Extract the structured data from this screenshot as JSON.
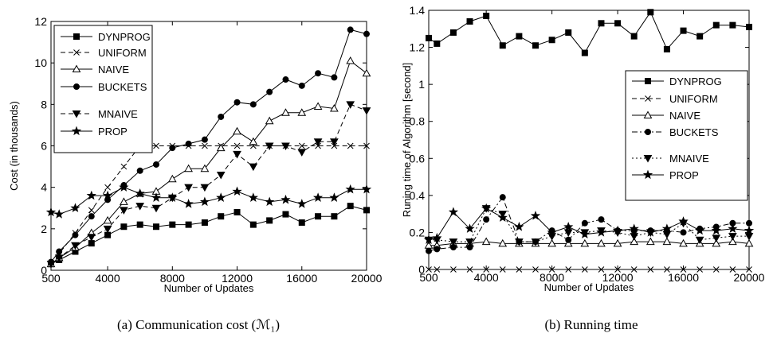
{
  "chart_data": [
    {
      "type": "line",
      "caption": "(a) Communication cost (ℳ₁)",
      "xlabel": "Number of Updates",
      "ylabel": "Cost (in thousands)",
      "xlim": [
        500,
        20000
      ],
      "ylim": [
        0,
        12
      ],
      "xticks": [
        "500",
        "4000",
        "8000",
        "12000",
        "16000",
        "20000"
      ],
      "yticks": [
        "0",
        "2",
        "4",
        "6",
        "8",
        "10",
        "12"
      ],
      "legend_position": "top-left",
      "x": [
        500,
        1000,
        2000,
        3000,
        4000,
        5000,
        6000,
        7000,
        8000,
        9000,
        10000,
        11000,
        12000,
        13000,
        14000,
        15000,
        16000,
        17000,
        18000,
        19000,
        20000
      ],
      "series": [
        {
          "name": "DYNPROG",
          "marker": "square",
          "dash": "solid",
          "values": [
            0.3,
            0.5,
            0.9,
            1.3,
            1.7,
            2.1,
            2.2,
            2.1,
            2.2,
            2.2,
            2.3,
            2.6,
            2.8,
            2.2,
            2.4,
            2.7,
            2.3,
            2.6,
            2.6,
            3.1,
            2.9
          ]
        },
        {
          "name": "UNIFORM",
          "marker": "x",
          "dash": "dashed",
          "values": [
            0.3,
            0.8,
            1.8,
            2.9,
            4.0,
            5.0,
            6.0,
            6.0,
            6.0,
            6.0,
            6.0,
            6.0,
            6.0,
            6.0,
            6.0,
            6.0,
            6.0,
            6.0,
            6.0,
            6.0,
            6.0
          ]
        },
        {
          "name": "NAIVE",
          "marker": "triangle-up",
          "dash": "solid",
          "values": [
            0.3,
            0.6,
            1.1,
            1.8,
            2.4,
            3.3,
            3.7,
            3.8,
            4.4,
            4.9,
            4.9,
            5.9,
            6.7,
            6.2,
            7.2,
            7.6,
            7.6,
            7.9,
            7.8,
            10.1,
            9.5
          ]
        },
        {
          "name": "BUCKETS",
          "marker": "circle",
          "dash": "solid",
          "values": [
            0.4,
            0.9,
            1.7,
            2.6,
            3.4,
            4.1,
            4.8,
            5.1,
            5.9,
            6.1,
            6.3,
            7.4,
            8.1,
            8.0,
            8.6,
            9.2,
            8.9,
            9.5,
            9.3,
            11.6,
            11.4
          ]
        },
        {
          "name": "MNAIVE",
          "marker": "triangle-down",
          "dash": "dashed",
          "values": [
            0.3,
            0.6,
            1.2,
            1.6,
            2.0,
            2.9,
            3.1,
            3.0,
            3.5,
            4.0,
            4.0,
            4.6,
            5.6,
            5.0,
            6.0,
            6.0,
            5.7,
            6.2,
            6.2,
            8.0,
            7.7
          ]
        },
        {
          "name": "PROP",
          "marker": "star",
          "dash": "solid",
          "values": [
            2.8,
            2.7,
            3.0,
            3.6,
            3.6,
            4.0,
            3.7,
            3.5,
            3.5,
            3.2,
            3.3,
            3.5,
            3.8,
            3.5,
            3.3,
            3.4,
            3.2,
            3.5,
            3.5,
            3.9,
            3.9
          ]
        }
      ]
    },
    {
      "type": "line",
      "caption": "(b) Running time",
      "xlabel": "Number of Updates",
      "ylabel": "Runing time of Algorithm [second]",
      "xlim": [
        500,
        20000
      ],
      "ylim": [
        0,
        1.4
      ],
      "xticks": [
        "500",
        "4000",
        "8000",
        "12000",
        "16000",
        "20000"
      ],
      "yticks": [
        "0",
        "0.2",
        "0.4",
        "0.6",
        "0.8",
        "1",
        "1.2",
        "1.4"
      ],
      "legend_position": "center-right",
      "x": [
        500,
        1000,
        2000,
        3000,
        4000,
        5000,
        6000,
        7000,
        8000,
        9000,
        10000,
        11000,
        12000,
        13000,
        14000,
        15000,
        16000,
        17000,
        18000,
        19000,
        20000
      ],
      "series": [
        {
          "name": "DYNPROG",
          "marker": "square",
          "dash": "solid",
          "values": [
            1.25,
            1.22,
            1.28,
            1.34,
            1.37,
            1.21,
            1.26,
            1.21,
            1.24,
            1.28,
            1.17,
            1.33,
            1.33,
            1.26,
            1.39,
            1.19,
            1.29,
            1.26,
            1.32,
            1.32,
            1.31
          ]
        },
        {
          "name": "UNIFORM",
          "marker": "x",
          "dash": "dashed",
          "values": [
            0.0,
            0.0,
            0.0,
            0.0,
            0.0,
            0.0,
            0.0,
            0.0,
            0.0,
            0.0,
            0.0,
            0.0,
            0.0,
            0.0,
            0.0,
            0.0,
            0.0,
            0.0,
            0.0,
            0.0,
            0.0
          ]
        },
        {
          "name": "NAIVE",
          "marker": "triangle-up",
          "dash": "solid",
          "values": [
            0.13,
            0.13,
            0.14,
            0.14,
            0.15,
            0.14,
            0.14,
            0.14,
            0.14,
            0.14,
            0.14,
            0.14,
            0.14,
            0.15,
            0.15,
            0.15,
            0.14,
            0.14,
            0.14,
            0.15,
            0.14
          ]
        },
        {
          "name": "BUCKETS",
          "marker": "circle",
          "dash": "dashdot",
          "values": [
            0.1,
            0.11,
            0.12,
            0.12,
            0.27,
            0.39,
            0.15,
            0.15,
            0.21,
            0.16,
            0.25,
            0.27,
            0.21,
            0.21,
            0.21,
            0.21,
            0.2,
            0.22,
            0.23,
            0.25,
            0.25
          ]
        },
        {
          "name": "MNAIVE",
          "marker": "triangle-down",
          "dash": "dotted",
          "values": [
            0.16,
            0.16,
            0.15,
            0.15,
            0.33,
            0.3,
            0.15,
            0.15,
            0.18,
            0.2,
            0.2,
            0.21,
            0.2,
            0.18,
            0.2,
            0.19,
            0.25,
            0.16,
            0.17,
            0.18,
            0.18
          ]
        },
        {
          "name": "PROP",
          "marker": "star",
          "dash": "solid",
          "values": [
            0.16,
            0.17,
            0.31,
            0.22,
            0.33,
            0.28,
            0.23,
            0.29,
            0.2,
            0.23,
            0.19,
            0.2,
            0.21,
            0.22,
            0.2,
            0.22,
            0.26,
            0.21,
            0.21,
            0.22,
            0.21
          ]
        }
      ]
    }
  ]
}
